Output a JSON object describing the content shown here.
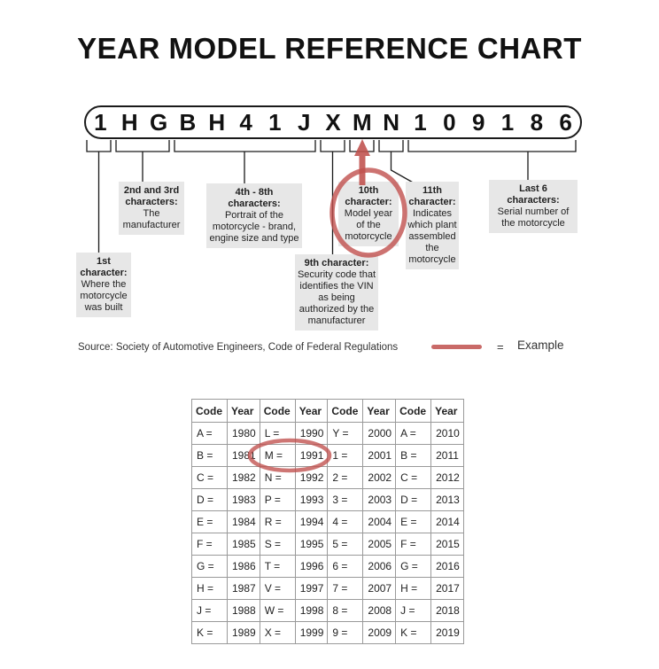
{
  "title": "YEAR MODEL REFERENCE CHART",
  "vin": {
    "characters": [
      "1",
      "H",
      "G",
      "B",
      "H",
      "4",
      "1",
      "J",
      "X",
      "M",
      "N",
      "1",
      "0",
      "9",
      "1",
      "8",
      "6"
    ],
    "highlighted_character": "M"
  },
  "callouts": {
    "first": {
      "title": "1st character:",
      "body": "Where the motorcycle was built"
    },
    "second_third": {
      "title": "2nd and 3rd characters:",
      "body": "The manufacturer"
    },
    "fourth_eighth": {
      "title": "4th - 8th characters:",
      "body": "Portrait of the motorcycle - brand, engine size and type"
    },
    "ninth": {
      "title": "9th character:",
      "body": "Security code that identifies the VIN as being authorized by the manufacturer"
    },
    "tenth": {
      "title": "10th character:",
      "body": "Model year of the motorcycle"
    },
    "eleventh": {
      "title": "11th character:",
      "body": "Indicates which plant assembled the motorcycle"
    },
    "last_six": {
      "title": "Last 6 characters:",
      "body": "Serial number of the motorcycle"
    }
  },
  "source": {
    "text": "Source:  Society of Automotive Engineers, Code of Federal Regulations",
    "equals": "=",
    "example_label": "Example"
  },
  "colors": {
    "highlight_red": "#c0504d",
    "callout_bg": "#e7e7e7",
    "table_border": "#9a9a9a"
  },
  "table": {
    "headers": [
      "Code",
      "Year",
      "Code",
      "Year",
      "Code",
      "Year",
      "Code",
      "Year"
    ],
    "rows": [
      [
        "A =",
        "1980",
        "L =",
        "1990",
        "Y =",
        "2000",
        "A =",
        "2010"
      ],
      [
        "B =",
        "1981",
        "M =",
        "1991",
        "1 =",
        "2001",
        "B =",
        "2011"
      ],
      [
        "C =",
        "1982",
        "N =",
        "1992",
        "2 =",
        "2002",
        "C =",
        "2012"
      ],
      [
        "D =",
        "1983",
        "P =",
        "1993",
        "3 =",
        "2003",
        "D =",
        "2013"
      ],
      [
        "E =",
        "1984",
        "R =",
        "1994",
        "4 =",
        "2004",
        "E =",
        "2014"
      ],
      [
        "F =",
        "1985",
        "S =",
        "1995",
        "5 =",
        "2005",
        "F =",
        "2015"
      ],
      [
        "G =",
        "1986",
        "T =",
        "1996",
        "6 =",
        "2006",
        "G =",
        "2016"
      ],
      [
        "H =",
        "1987",
        "V =",
        "1997",
        "7 =",
        "2007",
        "H =",
        "2017"
      ],
      [
        "J =",
        "1988",
        "W =",
        "1998",
        "8 =",
        "2008",
        "J =",
        "2018"
      ],
      [
        "K =",
        "1989",
        "X =",
        "1999",
        "9 =",
        "2009",
        "K =",
        "2019"
      ]
    ],
    "highlighted_example": "M = 1991"
  }
}
